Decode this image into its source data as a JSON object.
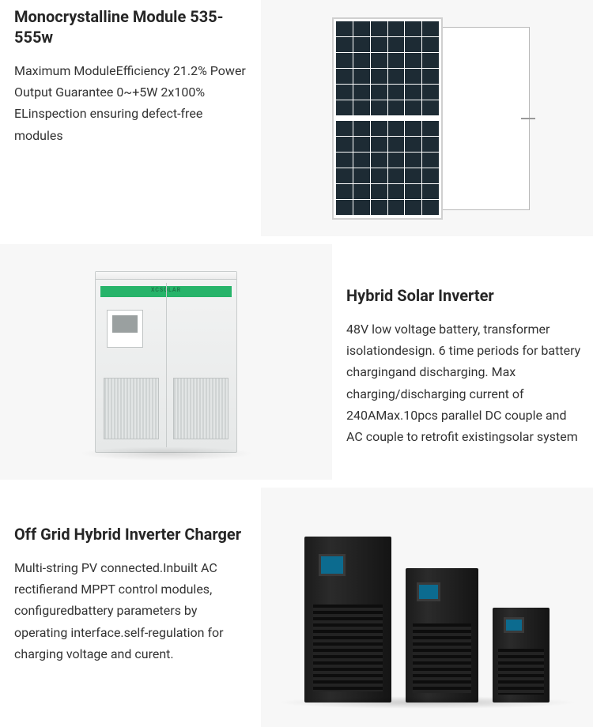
{
  "colors": {
    "text": "#262626",
    "body": "#333333",
    "panel_bg": "#f7f7f7",
    "cell": "#1d2b34",
    "cabinet_green": "#27b46a",
    "ups_display": "#0c6b8f"
  },
  "products": [
    {
      "title": "Monocrystalline Module 535-555w",
      "desc": "Maximum ModuleEfficiency 21.2% Power Output Guarantee 0~+5W 2x100% ELinspection ensuring defect-free modules",
      "image_kind": "solar-panel",
      "layout": "text-left"
    },
    {
      "title": "Hybrid Solar Inverter",
      "desc": "48V low voltage battery, transformer isolationdesign. 6 time periods for battery chargingand discharging. Max charging/discharging current of 240AMax.10pcs parallel DC couple and AC couple to retrofit existingsolar system",
      "image_kind": "cabinet",
      "cabinet_logo": "XCSOLAR",
      "layout": "image-left"
    },
    {
      "title": "Off Grid Hybrid Inverter Charger",
      "desc": "Multi-string PV connected.Inbuilt AC rectifierand MPPT control modules, configuredbattery parameters by operating interface.self-regulation for charging voltage and curent.",
      "image_kind": "ups-trio",
      "layout": "text-left"
    }
  ]
}
